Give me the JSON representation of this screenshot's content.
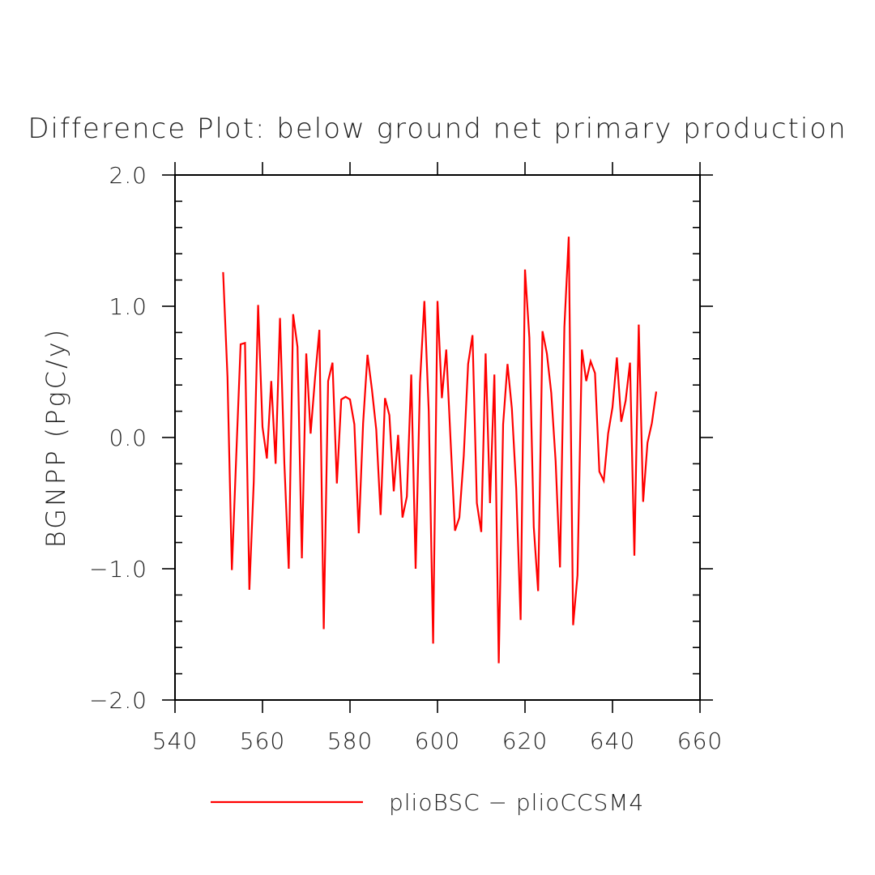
{
  "chart_data": {
    "type": "line",
    "title": "Difference Plot: below ground net primary production",
    "xlabel": "",
    "ylabel": "BGNPP  (PgC/y)",
    "xlim": [
      540,
      660
    ],
    "ylim": [
      -2.0,
      2.0
    ],
    "x_ticks": [
      540,
      560,
      580,
      600,
      620,
      640,
      660
    ],
    "x_tick_labels": [
      "540",
      "560",
      "580",
      "600",
      "620",
      "640",
      "660"
    ],
    "y_ticks": [
      -2.0,
      -1.0,
      0.0,
      1.0,
      2.0
    ],
    "y_tick_labels": [
      "−2.0",
      "−1.0",
      "0.0",
      "1.0",
      "2.0"
    ],
    "grid": false,
    "legend_position": "bottom",
    "series": [
      {
        "name": "plioBSC − plioCCSM4",
        "color": "#ff0000",
        "x": [
          551,
          552,
          553,
          554,
          555,
          556,
          557,
          558,
          559,
          560,
          561,
          562,
          563,
          564,
          565,
          566,
          567,
          568,
          569,
          570,
          571,
          572,
          573,
          574,
          575,
          576,
          577,
          578,
          579,
          580,
          581,
          582,
          583,
          584,
          585,
          586,
          587,
          588,
          589,
          590,
          591,
          592,
          593,
          594,
          595,
          596,
          597,
          598,
          599,
          600,
          601,
          602,
          603,
          604,
          605,
          606,
          607,
          608,
          609,
          610,
          611,
          612,
          613,
          614,
          615,
          616,
          617,
          618,
          619,
          620,
          621,
          622,
          623,
          624,
          625,
          626,
          627,
          628,
          629,
          630,
          631,
          632,
          633,
          634,
          635,
          636,
          637,
          638,
          639,
          640,
          641,
          642,
          643,
          644,
          645,
          646,
          647,
          648,
          649,
          650
        ],
        "values": [
          1.26,
          0.46,
          -1.01,
          -0.14,
          0.71,
          0.72,
          -1.16,
          -0.34,
          1.01,
          0.08,
          -0.16,
          0.43,
          -0.2,
          0.91,
          -0.2,
          -1.0,
          0.94,
          0.69,
          -0.92,
          0.64,
          0.03,
          0.45,
          0.82,
          -1.46,
          0.43,
          0.57,
          -0.35,
          0.29,
          0.31,
          0.29,
          0.1,
          -0.73,
          0.11,
          0.63,
          0.37,
          0.06,
          -0.59,
          0.3,
          0.17,
          -0.41,
          0.02,
          -0.61,
          -0.45,
          0.48,
          -1.0,
          0.42,
          1.04,
          0.2,
          -1.57,
          1.04,
          0.3,
          0.67,
          -0.03,
          -0.71,
          -0.61,
          -0.14,
          0.56,
          0.78,
          -0.5,
          -0.72,
          0.64,
          -0.5,
          0.48,
          -1.72,
          0.1,
          0.56,
          0.22,
          -0.39,
          -1.39,
          1.28,
          0.76,
          -0.68,
          -1.17,
          0.81,
          0.64,
          0.34,
          -0.18,
          -0.99,
          0.84,
          1.53,
          -1.43,
          -1.05,
          0.67,
          0.43,
          0.58,
          0.49,
          -0.26,
          -0.33,
          0.03,
          0.23,
          0.61,
          0.12,
          0.28,
          0.57,
          -0.9,
          0.86,
          -0.49,
          -0.04,
          0.11,
          0.35
        ]
      }
    ]
  }
}
